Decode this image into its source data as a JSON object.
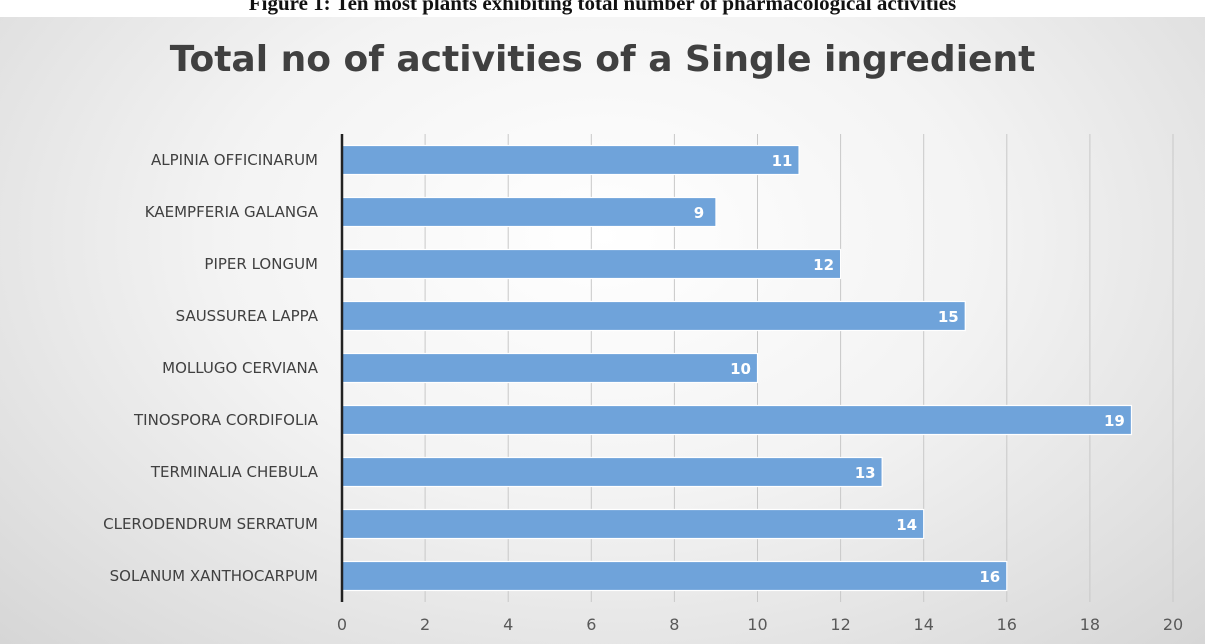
{
  "caption": "Figure 1: Ten most plants exhibiting total number of pharmacological activities",
  "colors": {
    "bar": "#6fa3da",
    "bar_edge": "#ffffff",
    "grid": "#c8c8c8",
    "axis": "#222222"
  },
  "chart_data": {
    "type": "bar",
    "orientation": "horizontal",
    "title": "Total no of activities of a Single ingredient",
    "categories": [
      "ALPINIA OFFICINARUM",
      "KAEMPFERIA GALANGA",
      "PIPER LONGUM",
      "SAUSSUREA LAPPA",
      "MOLLUGO CERVIANA",
      "TINOSPORA CORDIFOLIA",
      "TERMINALIA CHEBULA",
      "CLERODENDRUM SERRATUM",
      "SOLANUM XANTHOCARPUM"
    ],
    "values": [
      11,
      9,
      12,
      15,
      10,
      19,
      13,
      14,
      16
    ],
    "xlim": [
      0,
      20
    ],
    "xticks": [
      0,
      2,
      4,
      6,
      8,
      10,
      12,
      14,
      16,
      18,
      20
    ],
    "grid": true,
    "data_labels": true,
    "legend": "none"
  }
}
